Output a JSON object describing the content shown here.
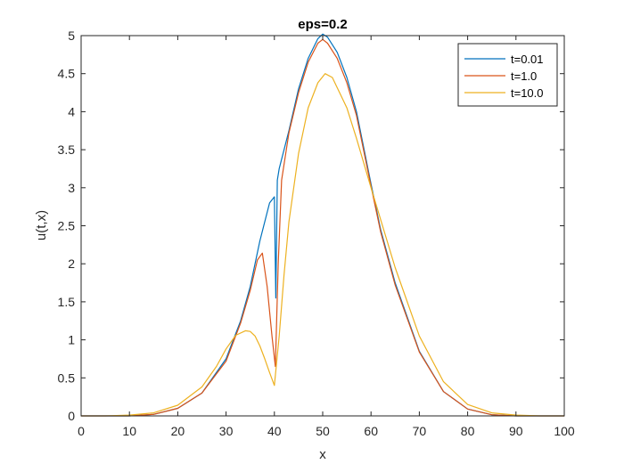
{
  "chart_data": {
    "type": "line",
    "title": "eps=0.2",
    "xlabel": "x",
    "ylabel": "u(t,x)",
    "xlim": [
      0,
      100
    ],
    "ylim": [
      0,
      5
    ],
    "xticks": [
      0,
      10,
      20,
      30,
      40,
      50,
      60,
      70,
      80,
      90,
      100
    ],
    "xtick_labels": [
      "0",
      "10",
      "20",
      "30",
      "40",
      "50",
      "60",
      "70",
      "80",
      "90",
      "100"
    ],
    "yticks": [
      0,
      0.5,
      1,
      1.5,
      2,
      2.5,
      3,
      3.5,
      4,
      4.5,
      5
    ],
    "ytick_labels": [
      "0",
      "0.5",
      "1",
      "1.5",
      "2",
      "2.5",
      "3",
      "3.5",
      "4",
      "4.5",
      "5"
    ],
    "grid": false,
    "legend_position": "top-right",
    "series": [
      {
        "name": "t=0.01",
        "color": "#0072BD",
        "x": [
          0,
          10,
          15,
          20,
          25,
          30,
          33,
          35,
          37,
          39,
          40,
          40.3,
          40.6,
          41,
          43,
          45,
          47,
          49,
          50,
          51,
          53,
          55,
          57,
          60,
          62,
          65,
          70,
          75,
          80,
          85,
          90,
          95,
          100
        ],
        "y": [
          0,
          0.0,
          0.02,
          0.1,
          0.3,
          0.75,
          1.25,
          1.7,
          2.3,
          2.8,
          2.88,
          1.55,
          3.1,
          3.25,
          3.75,
          4.3,
          4.7,
          4.96,
          5.02,
          4.98,
          4.78,
          4.45,
          4.0,
          3.05,
          2.45,
          1.75,
          0.85,
          0.32,
          0.09,
          0.015,
          0.0,
          0.0,
          0.0
        ]
      },
      {
        "name": "t=1.0",
        "color": "#D95319",
        "x": [
          0,
          10,
          15,
          20,
          25,
          30,
          33,
          35,
          36.5,
          37.5,
          38.5,
          39.5,
          40.2,
          40.8,
          41.5,
          43,
          45,
          47,
          49,
          50,
          51,
          53,
          55,
          57,
          60,
          62,
          65,
          70,
          75,
          80,
          85,
          90,
          95,
          100
        ],
        "y": [
          0,
          0.0,
          0.02,
          0.1,
          0.3,
          0.72,
          1.22,
          1.65,
          2.05,
          2.14,
          1.7,
          1.05,
          0.65,
          2.0,
          3.1,
          3.72,
          4.25,
          4.65,
          4.9,
          4.95,
          4.9,
          4.7,
          4.38,
          3.95,
          3.02,
          2.42,
          1.72,
          0.84,
          0.32,
          0.09,
          0.015,
          0.0,
          0.0,
          0.0
        ]
      },
      {
        "name": "t=10.0",
        "color": "#EDB120",
        "x": [
          0,
          5,
          10,
          15,
          20,
          25,
          28,
          30,
          32,
          34,
          35,
          36,
          37,
          38,
          39,
          40,
          41,
          42,
          43,
          45,
          47,
          49,
          50.5,
          52,
          55,
          57,
          60,
          65,
          70,
          75,
          80,
          85,
          90,
          95,
          100
        ],
        "y": [
          0,
          0.0,
          0.01,
          0.04,
          0.14,
          0.38,
          0.65,
          0.88,
          1.06,
          1.12,
          1.11,
          1.05,
          0.92,
          0.75,
          0.57,
          0.4,
          1.05,
          1.85,
          2.55,
          3.45,
          4.05,
          4.38,
          4.5,
          4.45,
          4.05,
          3.65,
          3.0,
          1.95,
          1.05,
          0.45,
          0.15,
          0.04,
          0.01,
          0.0,
          0.0
        ]
      }
    ]
  }
}
